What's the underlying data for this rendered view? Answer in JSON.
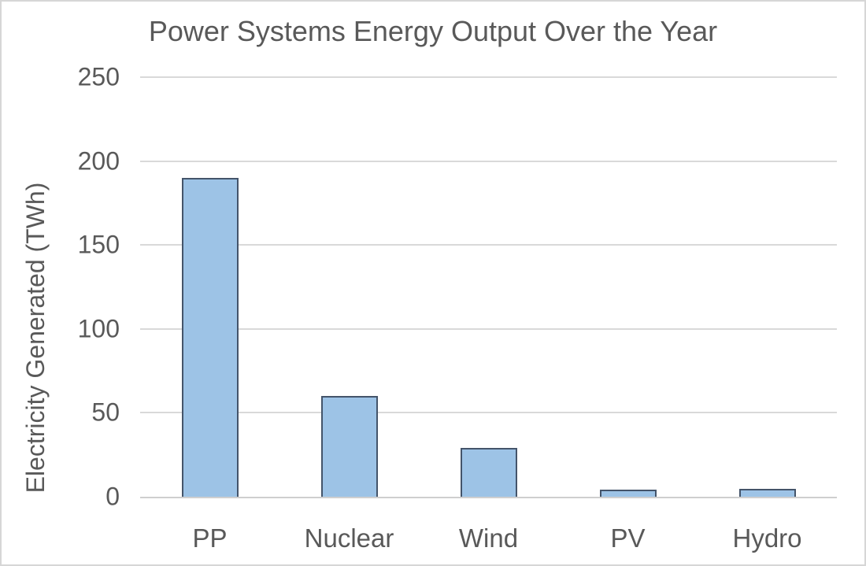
{
  "chart_data": {
    "type": "bar",
    "title": "Power Systems Energy Output Over the Year",
    "xlabel": "",
    "ylabel": "Electricity Generated (TWh)",
    "categories": [
      "PP",
      "Nuclear",
      "Wind",
      "PV",
      "Hydro"
    ],
    "values": [
      190,
      60,
      29,
      4,
      4.5
    ],
    "ylim": [
      0,
      250
    ],
    "yticks": [
      0,
      50,
      100,
      150,
      200,
      250
    ],
    "grid": true,
    "legend": false,
    "gridlines_at": [
      50,
      100,
      150,
      200,
      250
    ]
  },
  "colors": {
    "text": "#595959",
    "gridline": "#d9d9d9",
    "axis_line": "#cfcfcf",
    "bar_fill": "#9dc3e6",
    "bar_border": "#44546a",
    "frame_border": "#d6d6d6",
    "background": "#ffffff"
  }
}
